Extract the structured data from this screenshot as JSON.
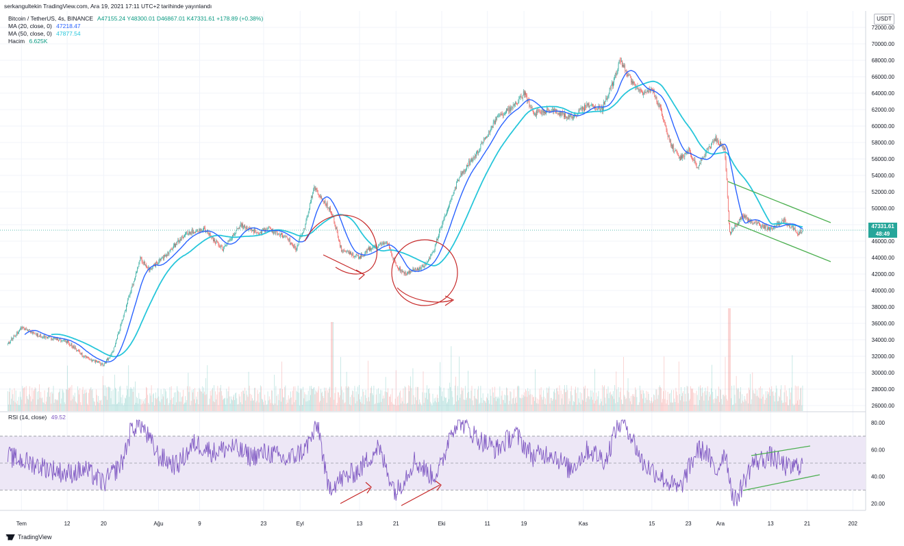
{
  "header": {
    "published_by": "serkangultekin TradingView.com, Ara 19, 2021 17:11 UTC+2 tarihinde yayınlandı",
    "symbol": "Bitcoin / TetherUS, 4s, BINANCE",
    "ohlc": "A47155.24 Y48300.01 D46867.01 K47331.61 +178.89 (+0.38%)",
    "ma20_label": "MA (20, close, 0)",
    "ma20_value": "47218.47",
    "ma50_label": "MA (50, close, 0)",
    "ma50_value": "47877.54",
    "volume_label": "Hacim",
    "volume_value": "6.625K",
    "rsi_label": "RSI (14, close)",
    "rsi_value": "49.52"
  },
  "currency": "USDT",
  "last_price_label": "47331.61",
  "last_price_sub": "48:49",
  "logo_text": "TradingView",
  "colors": {
    "up": "#26a69a",
    "down": "#ef5350",
    "ma20": "#2962ff",
    "ma50": "#26c6da",
    "rsi": "#7e57c2",
    "rsi_band": "#ede7f6",
    "annotation_red": "#c62828",
    "annotation_green": "#4caf50"
  },
  "chart_data": [
    {
      "type": "candlestick",
      "title": "Bitcoin / TetherUS, 4s, BINANCE",
      "y_ticks": [
        "26000.00",
        "28000.00",
        "30000.00",
        "32000.00",
        "34000.00",
        "36000.00",
        "38000.00",
        "40000.00",
        "42000.00",
        "44000.00",
        "46000.00",
        "48000.00",
        "50000.00",
        "52000.00",
        "54000.00",
        "56000.00",
        "58000.00",
        "60000.00",
        "62000.00",
        "64000.00",
        "66000.00",
        "68000.00",
        "70000.00",
        "72000.00"
      ],
      "ylim": [
        25000,
        73000
      ],
      "x_ticks": [
        "Tem",
        "12",
        "20",
        "Ağu",
        "9",
        "23",
        "Eyl",
        "13",
        "21",
        "Eki",
        "11",
        "19",
        "Kas",
        "15",
        "23",
        "Ara",
        "13",
        "21",
        "202"
      ],
      "x_tick_days": [
        0,
        10,
        18,
        30,
        39,
        53,
        61,
        74,
        82,
        92,
        102,
        110,
        123,
        138,
        146,
        153,
        164,
        172,
        182
      ],
      "x_range_days": [
        -3.5,
        184.5
      ],
      "price_path": {
        "days": [
          -3,
          0,
          4,
          10,
          14,
          18,
          20,
          24,
          26,
          28,
          32,
          36,
          40,
          44,
          48,
          52,
          54,
          58,
          60,
          62,
          64,
          68,
          70,
          72,
          74,
          76,
          80,
          82,
          84,
          86,
          88,
          90,
          92,
          96,
          100,
          104,
          108,
          110,
          112,
          116,
          120,
          124,
          127,
          130,
          131,
          134,
          136,
          138,
          140,
          142,
          144,
          146,
          148,
          150,
          152,
          154,
          155,
          158,
          161,
          164,
          167,
          170,
          171
        ],
        "close": [
          33500,
          35500,
          34500,
          33800,
          31800,
          31000,
          32500,
          40000,
          44000,
          42500,
          44500,
          47000,
          47500,
          45000,
          48000,
          47000,
          47500,
          46500,
          45000,
          47800,
          52500,
          49500,
          45000,
          44500,
          44000,
          45000,
          46000,
          43000,
          42000,
          42500,
          43000,
          44500,
          48000,
          54000,
          57000,
          61000,
          62500,
          64000,
          61500,
          62000,
          61000,
          62500,
          62000,
          66000,
          68000,
          65000,
          64000,
          64500,
          62000,
          58000,
          56000,
          57000,
          55000,
          57000,
          58500,
          57000,
          47000,
          49000,
          48000,
          47500,
          48500,
          47000,
          47331.61
        ]
      },
      "series": [
        {
          "name": "MA (20, close, 0)",
          "last_value": 47218.47
        },
        {
          "name": "MA (50, close, 0)",
          "last_value": 47877.54
        },
        {
          "name": "Hacim",
          "last_value": "6.625K"
        }
      ],
      "last_price": 47331.61,
      "annotations": [
        "red circle and arrow near Eyl 13",
        "red circle and arrow near Eyl 21 - Eki",
        "green descending channel near Ara 13-21"
      ]
    },
    {
      "type": "line",
      "title": "RSI (14, close)",
      "ylim": [
        15,
        83
      ],
      "y_ticks": [
        "20.00",
        "40.00",
        "60.00",
        "80.00"
      ],
      "bands": [
        30,
        70
      ],
      "last_value": 49.52,
      "rsi_path": {
        "days": [
          -3,
          4,
          10,
          14,
          18,
          22,
          24,
          26,
          30,
          34,
          38,
          42,
          46,
          50,
          54,
          58,
          62,
          65,
          67,
          70,
          74,
          78,
          82,
          86,
          90,
          92,
          94,
          96,
          100,
          104,
          108,
          112,
          116,
          120,
          124,
          128,
          130,
          132,
          136,
          140,
          144,
          148,
          150,
          152,
          154,
          156,
          160,
          164,
          168,
          171
        ],
        "rsi": [
          55,
          48,
          42,
          45,
          35,
          50,
          75,
          80,
          55,
          48,
          65,
          58,
          62,
          55,
          58,
          52,
          60,
          78,
          32,
          38,
          45,
          62,
          28,
          52,
          40,
          48,
          75,
          82,
          68,
          60,
          72,
          55,
          58,
          45,
          60,
          52,
          75,
          82,
          50,
          40,
          30,
          60,
          58,
          42,
          60,
          20,
          50,
          55,
          46,
          49.5
        ]
      },
      "annotations": [
        "red arrows near Eyl 13 and Eyl 21-Eki",
        "green ascending channel near Ara 13-21"
      ]
    }
  ]
}
